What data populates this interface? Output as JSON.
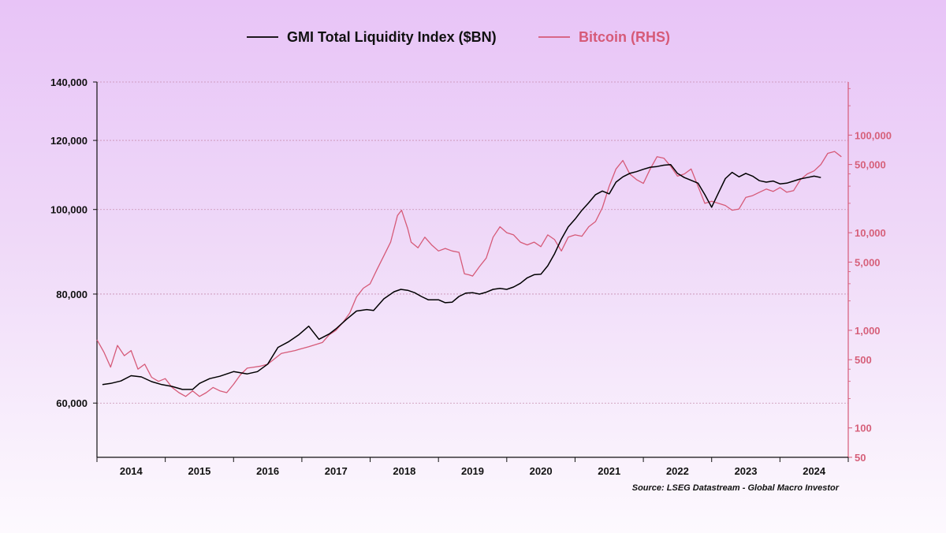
{
  "chart_data": {
    "type": "line",
    "legend_position": "top-center",
    "grid": true,
    "source": "Source: LSEG Datastream - Global Macro Investor",
    "x_ticks": [
      "2014",
      "2015",
      "2016",
      "2017",
      "2018",
      "2019",
      "2020",
      "2021",
      "2022",
      "2023",
      "2024"
    ],
    "x_range": [
      2013.5,
      2024.5
    ],
    "left_axis": {
      "scale": "log",
      "range": [
        52000,
        140000
      ],
      "ticks": [
        60000,
        80000,
        100000,
        120000,
        140000
      ],
      "tick_labels": [
        "60,000",
        "80,000",
        "100,000",
        "120,000",
        "140,000"
      ]
    },
    "right_axis": {
      "scale": "log",
      "range": [
        50,
        350000
      ],
      "ticks": [
        50,
        100,
        500,
        1000,
        5000,
        10000,
        50000,
        100000
      ],
      "tick_labels": [
        "50",
        "100",
        "500",
        "1,000",
        "5,000",
        "10,000",
        "50,000",
        "100,000"
      ]
    },
    "series": [
      {
        "name": "GMI Total Liquidity Index ($BN)",
        "axis": "left",
        "color": "#000000",
        "x": [
          2013.58,
          2013.7,
          2013.85,
          2014.0,
          2014.15,
          2014.3,
          2014.45,
          2014.6,
          2014.75,
          2014.9,
          2015.0,
          2015.15,
          2015.3,
          2015.5,
          2015.7,
          2015.85,
          2016.0,
          2016.15,
          2016.3,
          2016.45,
          2016.6,
          2016.75,
          2016.9,
          2017.0,
          2017.15,
          2017.3,
          2017.45,
          2017.55,
          2017.7,
          2017.85,
          2017.95,
          2018.05,
          2018.15,
          2018.25,
          2018.35,
          2018.5,
          2018.6,
          2018.7,
          2018.8,
          2018.9,
          2019.0,
          2019.1,
          2019.2,
          2019.3,
          2019.4,
          2019.5,
          2019.6,
          2019.7,
          2019.8,
          2019.9,
          2020.0,
          2020.1,
          2020.2,
          2020.3,
          2020.4,
          2020.5,
          2020.6,
          2020.7,
          2020.8,
          2020.9,
          2021.0,
          2021.1,
          2021.2,
          2021.3,
          2021.4,
          2021.5,
          2021.6,
          2021.7,
          2021.8,
          2021.9,
          2022.0,
          2022.1,
          2022.2,
          2022.3,
          2022.4,
          2022.5,
          2022.6,
          2022.7,
          2022.8,
          2022.9,
          2023.0,
          2023.1,
          2023.2,
          2023.3,
          2023.4,
          2023.5,
          2023.6,
          2023.7,
          2023.8,
          2023.9,
          2024.0,
          2024.1
        ],
        "values": [
          63000,
          63200,
          63600,
          64500,
          64300,
          63500,
          63000,
          62700,
          62200,
          62200,
          63200,
          64000,
          64400,
          65200,
          64800,
          65200,
          66500,
          69500,
          70500,
          71800,
          73500,
          71000,
          72000,
          73000,
          74800,
          76500,
          76800,
          76600,
          79000,
          80500,
          81000,
          80800,
          80300,
          79500,
          78800,
          78800,
          78200,
          78300,
          79500,
          80200,
          80300,
          80000,
          80400,
          81000,
          81200,
          81000,
          81500,
          82300,
          83500,
          84200,
          84300,
          86200,
          89000,
          92500,
          95500,
          97500,
          99800,
          101800,
          104000,
          105000,
          104200,
          107500,
          109000,
          110000,
          110500,
          111200,
          111800,
          112000,
          112400,
          112600,
          110000,
          108800,
          108000,
          107200,
          104000,
          100600,
          104500,
          108500,
          110300,
          109000,
          110000,
          109200,
          107900,
          107500,
          107800,
          107000,
          107200,
          107800,
          108400,
          108800,
          109200,
          108800
        ],
        "last_value": 108800
      },
      {
        "name": "Bitcoin (RHS)",
        "axis": "right",
        "color": "#d65a78",
        "x": [
          2013.5,
          2013.6,
          2013.7,
          2013.8,
          2013.9,
          2014.0,
          2014.1,
          2014.2,
          2014.3,
          2014.4,
          2014.5,
          2014.6,
          2014.7,
          2014.8,
          2014.9,
          2015.0,
          2015.1,
          2015.2,
          2015.3,
          2015.4,
          2015.5,
          2015.6,
          2015.7,
          2015.8,
          2015.9,
          2016.0,
          2016.2,
          2016.4,
          2016.5,
          2016.6,
          2016.8,
          2016.9,
          2017.0,
          2017.1,
          2017.2,
          2017.3,
          2017.4,
          2017.5,
          2017.6,
          2017.7,
          2017.8,
          2017.9,
          2017.96,
          2018.0,
          2018.05,
          2018.1,
          2018.2,
          2018.3,
          2018.4,
          2018.5,
          2018.6,
          2018.7,
          2018.8,
          2018.88,
          2018.95,
          2019.0,
          2019.1,
          2019.2,
          2019.3,
          2019.4,
          2019.5,
          2019.6,
          2019.7,
          2019.8,
          2019.9,
          2020.0,
          2020.1,
          2020.2,
          2020.3,
          2020.4,
          2020.5,
          2020.6,
          2020.7,
          2020.8,
          2020.9,
          2021.0,
          2021.1,
          2021.2,
          2021.3,
          2021.4,
          2021.5,
          2021.6,
          2021.7,
          2021.8,
          2021.9,
          2022.0,
          2022.1,
          2022.2,
          2022.3,
          2022.4,
          2022.5,
          2022.6,
          2022.7,
          2022.8,
          2022.9,
          2023.0,
          2023.1,
          2023.2,
          2023.3,
          2023.4,
          2023.5,
          2023.6,
          2023.7,
          2023.8,
          2023.9,
          2024.0,
          2024.1,
          2024.2,
          2024.3,
          2024.4
        ],
        "values": [
          800,
          600,
          420,
          700,
          550,
          620,
          400,
          450,
          330,
          300,
          320,
          260,
          230,
          210,
          240,
          210,
          230,
          260,
          240,
          230,
          280,
          350,
          410,
          420,
          430,
          450,
          580,
          620,
          650,
          680,
          750,
          900,
          1000,
          1200,
          1500,
          2200,
          2700,
          3000,
          4200,
          5800,
          8000,
          15000,
          17000,
          14000,
          11000,
          8000,
          7000,
          9000,
          7500,
          6500,
          6900,
          6500,
          6300,
          3800,
          3700,
          3600,
          4500,
          5500,
          9000,
          11500,
          10000,
          9500,
          8000,
          7500,
          8000,
          7200,
          9500,
          8500,
          6500,
          9000,
          9500,
          9200,
          11500,
          13000,
          18000,
          30000,
          45000,
          55000,
          40000,
          35000,
          32000,
          45000,
          60000,
          58000,
          48000,
          38000,
          40000,
          45000,
          30000,
          20000,
          21000,
          20000,
          19000,
          17000,
          17500,
          23000,
          24000,
          26000,
          28000,
          26500,
          29000,
          26000,
          27000,
          35000,
          40000,
          43000,
          50000,
          65000,
          68000,
          60000
        ],
        "last_value": 60000
      }
    ]
  }
}
